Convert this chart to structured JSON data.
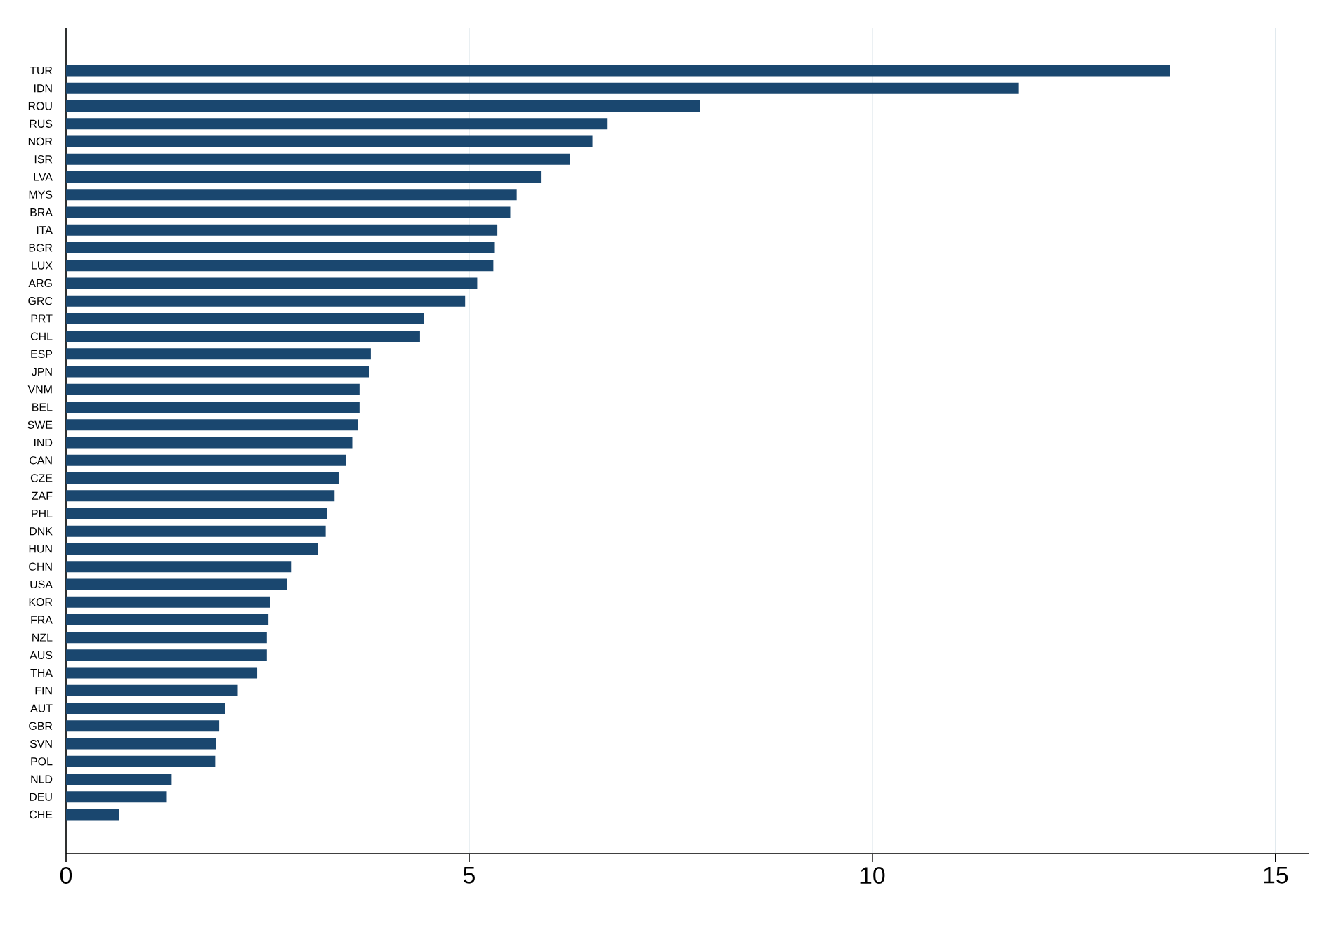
{
  "chart_data": {
    "type": "bar",
    "orientation": "horizontal",
    "color": "#1a476f",
    "grid": "x",
    "categories": [
      "TUR",
      "IDN",
      "ROU",
      "RUS",
      "NOR",
      "ISR",
      "LVA",
      "MYS",
      "BRA",
      "ITA",
      "BGR",
      "LUX",
      "ARG",
      "GRC",
      "PRT",
      "CHL",
      "ESP",
      "JPN",
      "VNM",
      "BEL",
      "SWE",
      "IND",
      "CAN",
      "CZE",
      "ZAF",
      "PHL",
      "DNK",
      "HUN",
      "CHN",
      "USA",
      "KOR",
      "FRA",
      "NZL",
      "AUS",
      "THA",
      "FIN",
      "AUT",
      "GBR",
      "SVN",
      "POL",
      "NLD",
      "DEU",
      "CHE"
    ],
    "values": [
      13.69,
      11.81,
      7.86,
      6.71,
      6.53,
      6.25,
      5.89,
      5.59,
      5.51,
      5.35,
      5.31,
      5.3,
      5.1,
      4.95,
      4.44,
      4.39,
      3.78,
      3.76,
      3.64,
      3.64,
      3.62,
      3.55,
      3.47,
      3.38,
      3.33,
      3.24,
      3.22,
      3.12,
      2.79,
      2.74,
      2.53,
      2.51,
      2.49,
      2.49,
      2.37,
      2.13,
      1.97,
      1.9,
      1.86,
      1.85,
      1.31,
      1.25,
      0.66
    ],
    "xlim": [
      0,
      15.42
    ],
    "xticks": [
      0,
      5,
      10,
      15
    ]
  }
}
